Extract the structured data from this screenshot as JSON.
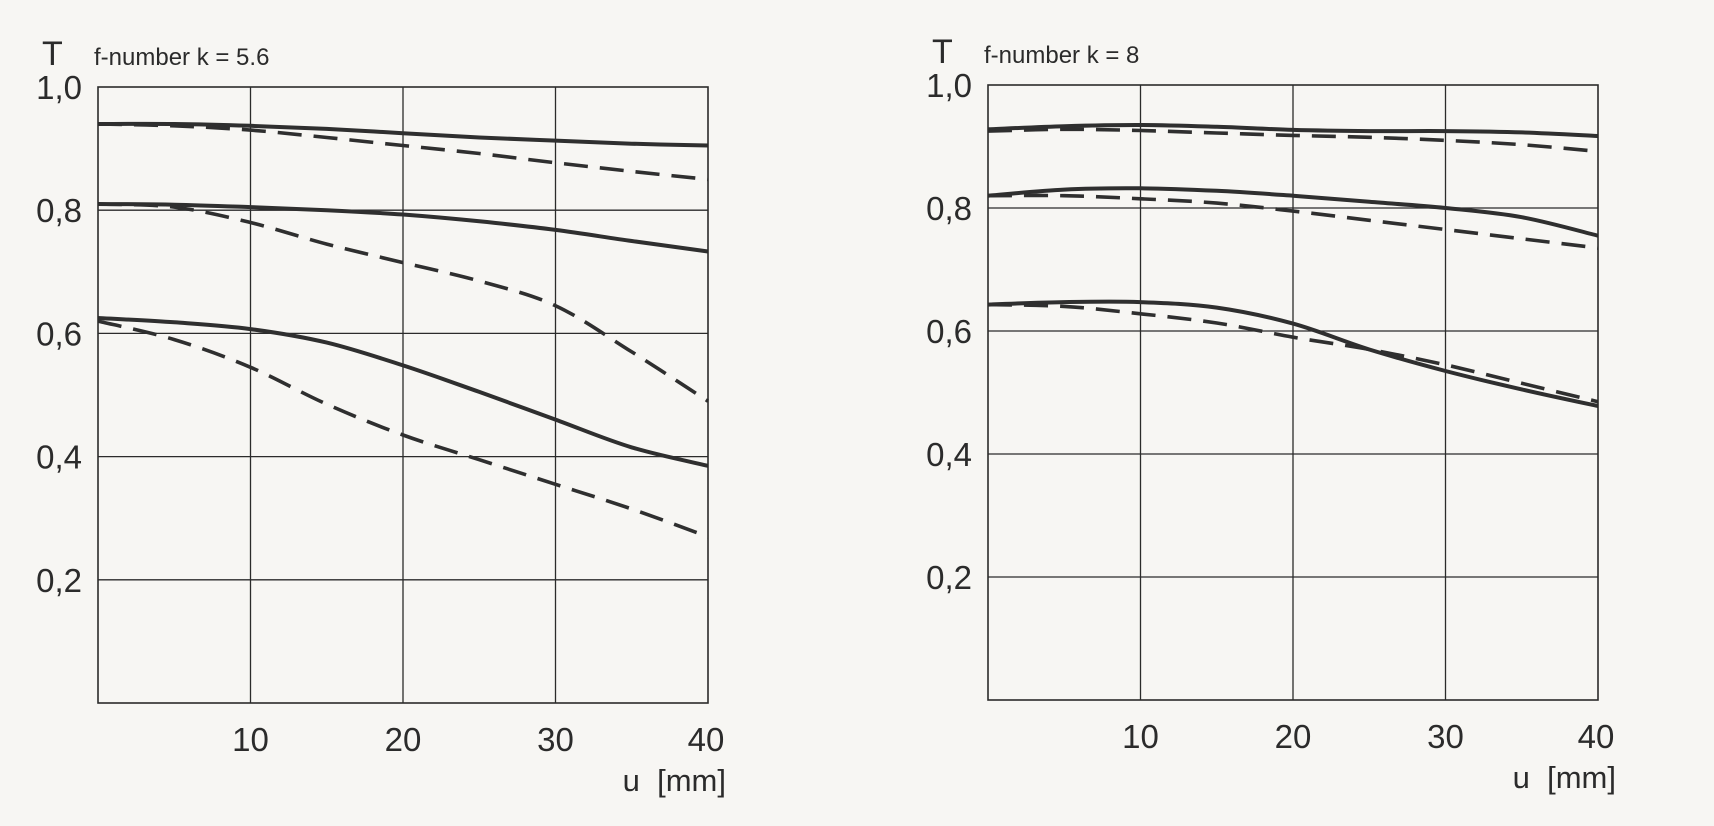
{
  "chart_data": [
    {
      "type": "line",
      "title": "f-number k = 5.6",
      "ylabel": "T",
      "xlabel": "u  [mm]",
      "xlim": [
        0,
        40
      ],
      "ylim": [
        0,
        1.0
      ],
      "xticks": [
        10,
        20,
        30,
        40
      ],
      "xtick_labels": [
        "10",
        "20",
        "30",
        "40"
      ],
      "yticks": [
        0.2,
        0.4,
        0.6,
        0.8,
        1.0
      ],
      "ytick_labels": [
        "0,2",
        "0,4",
        "0,6",
        "0,8",
        "1,0"
      ],
      "grid": true,
      "series": [
        {
          "style": "solid",
          "x": [
            0,
            5,
            10,
            15,
            20,
            25,
            30,
            35,
            40
          ],
          "y": [
            0.94,
            0.94,
            0.937,
            0.932,
            0.925,
            0.918,
            0.913,
            0.908,
            0.905
          ]
        },
        {
          "style": "dashed",
          "x": [
            0,
            5,
            10,
            15,
            20,
            25,
            30,
            35,
            40
          ],
          "y": [
            0.94,
            0.937,
            0.93,
            0.918,
            0.905,
            0.892,
            0.877,
            0.863,
            0.85
          ]
        },
        {
          "style": "solid",
          "x": [
            0,
            5,
            10,
            15,
            20,
            25,
            30,
            35,
            40
          ],
          "y": [
            0.81,
            0.809,
            0.805,
            0.8,
            0.793,
            0.782,
            0.768,
            0.75,
            0.733
          ]
        },
        {
          "style": "dashed",
          "x": [
            0,
            5,
            10,
            15,
            20,
            25,
            30,
            35,
            40
          ],
          "y": [
            0.81,
            0.805,
            0.78,
            0.745,
            0.715,
            0.685,
            0.645,
            0.57,
            0.49
          ]
        },
        {
          "style": "solid",
          "x": [
            0,
            5,
            10,
            15,
            20,
            25,
            30,
            35,
            40
          ],
          "y": [
            0.625,
            0.618,
            0.607,
            0.585,
            0.548,
            0.505,
            0.46,
            0.415,
            0.385
          ]
        },
        {
          "style": "dashed",
          "x": [
            0,
            5,
            10,
            15,
            20,
            25,
            30,
            35,
            40
          ],
          "y": [
            0.62,
            0.59,
            0.545,
            0.485,
            0.435,
            0.395,
            0.355,
            0.315,
            0.27
          ]
        }
      ]
    },
    {
      "type": "line",
      "title": "f-number k = 8",
      "ylabel": "T",
      "xlabel": "u  [mm]",
      "xlim": [
        0,
        40
      ],
      "ylim": [
        0,
        1.0
      ],
      "xticks": [
        10,
        20,
        30,
        40
      ],
      "xtick_labels": [
        "10",
        "20",
        "30",
        "40"
      ],
      "yticks": [
        0.2,
        0.4,
        0.6,
        0.8,
        1.0
      ],
      "ytick_labels": [
        "0,2",
        "0,4",
        "0,6",
        "0,8",
        "1,0"
      ],
      "grid": true,
      "series": [
        {
          "style": "solid",
          "x": [
            0,
            5,
            10,
            15,
            20,
            25,
            30,
            35,
            40
          ],
          "y": [
            0.928,
            0.933,
            0.935,
            0.932,
            0.927,
            0.925,
            0.925,
            0.923,
            0.917
          ]
        },
        {
          "style": "dashed",
          "x": [
            0,
            5,
            10,
            15,
            20,
            25,
            30,
            35,
            40
          ],
          "y": [
            0.925,
            0.928,
            0.926,
            0.922,
            0.918,
            0.915,
            0.91,
            0.903,
            0.892
          ]
        },
        {
          "style": "solid",
          "x": [
            0,
            5,
            10,
            15,
            20,
            25,
            30,
            35,
            40
          ],
          "y": [
            0.82,
            0.83,
            0.832,
            0.828,
            0.82,
            0.81,
            0.8,
            0.785,
            0.755
          ]
        },
        {
          "style": "dashed",
          "x": [
            0,
            5,
            10,
            15,
            20,
            25,
            30,
            35,
            40
          ],
          "y": [
            0.82,
            0.82,
            0.815,
            0.808,
            0.795,
            0.78,
            0.765,
            0.75,
            0.735
          ]
        },
        {
          "style": "solid",
          "x": [
            0,
            5,
            10,
            15,
            20,
            25,
            30,
            35,
            40
          ],
          "y": [
            0.643,
            0.647,
            0.647,
            0.638,
            0.612,
            0.57,
            0.535,
            0.505,
            0.478
          ]
        },
        {
          "style": "dashed",
          "x": [
            0,
            5,
            10,
            15,
            20,
            25,
            30,
            35,
            40
          ],
          "y": [
            0.643,
            0.64,
            0.628,
            0.613,
            0.59,
            0.57,
            0.545,
            0.515,
            0.485
          ]
        }
      ]
    }
  ]
}
